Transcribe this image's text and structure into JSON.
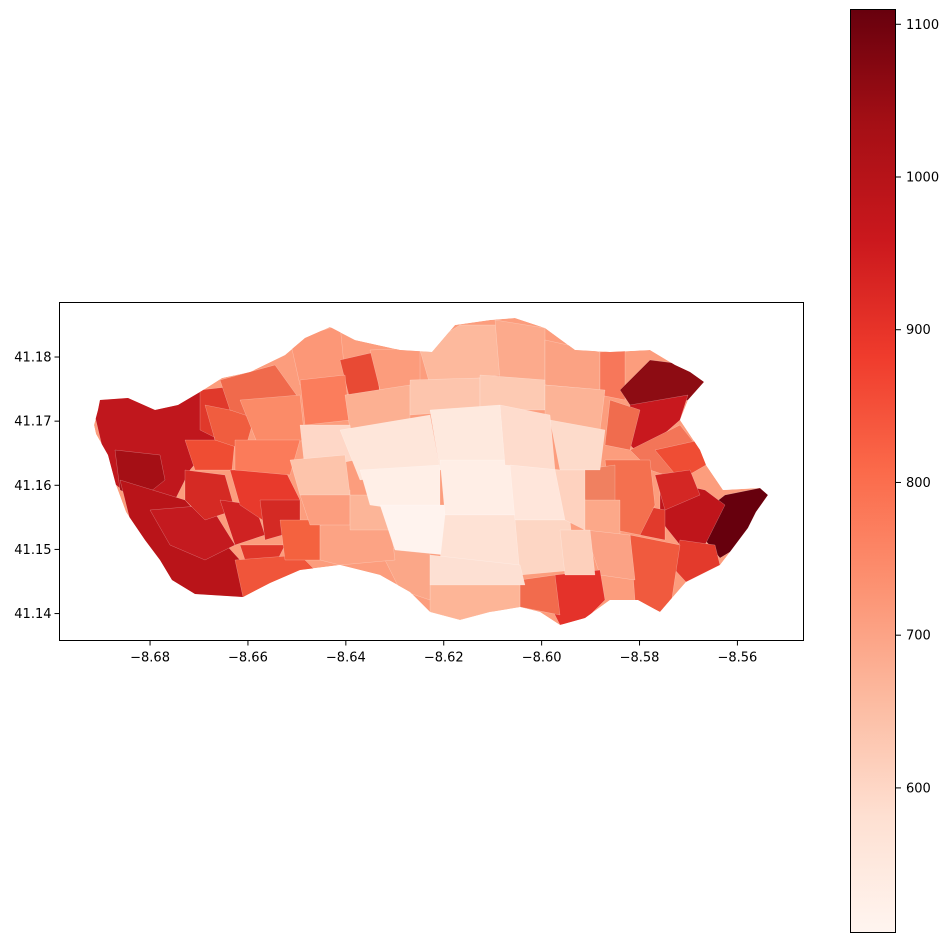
{
  "map": {
    "projection": "lon-lat",
    "x_ticks": [
      "−8.68",
      "−8.66",
      "−8.64",
      "−8.62",
      "−8.60",
      "−8.58",
      "−8.56"
    ],
    "x_tick_values": [
      -8.68,
      -8.66,
      -8.64,
      -8.62,
      -8.6,
      -8.58,
      -8.56
    ],
    "y_ticks": [
      "41.14",
      "41.15",
      "41.16",
      "41.17",
      "41.18"
    ],
    "y_tick_values": [
      41.14,
      41.15,
      41.16,
      41.17,
      41.18
    ],
    "xlim": [
      -8.6985,
      -8.5465
    ],
    "ylim": [
      41.1358,
      41.1885
    ],
    "fill_scale": "Reds"
  },
  "colorbar": {
    "ticks": [
      "600",
      "700",
      "800",
      "900",
      "1000",
      "1100"
    ],
    "tick_values": [
      600,
      700,
      800,
      900,
      1000,
      1100
    ],
    "min": 505,
    "max": 1110,
    "colors": [
      "#fff5f0",
      "#fee0d2",
      "#fcbba1",
      "#fc9272",
      "#fb6a4a",
      "#ef3b2c",
      "#cb181d",
      "#a50f15",
      "#67000d"
    ]
  }
}
